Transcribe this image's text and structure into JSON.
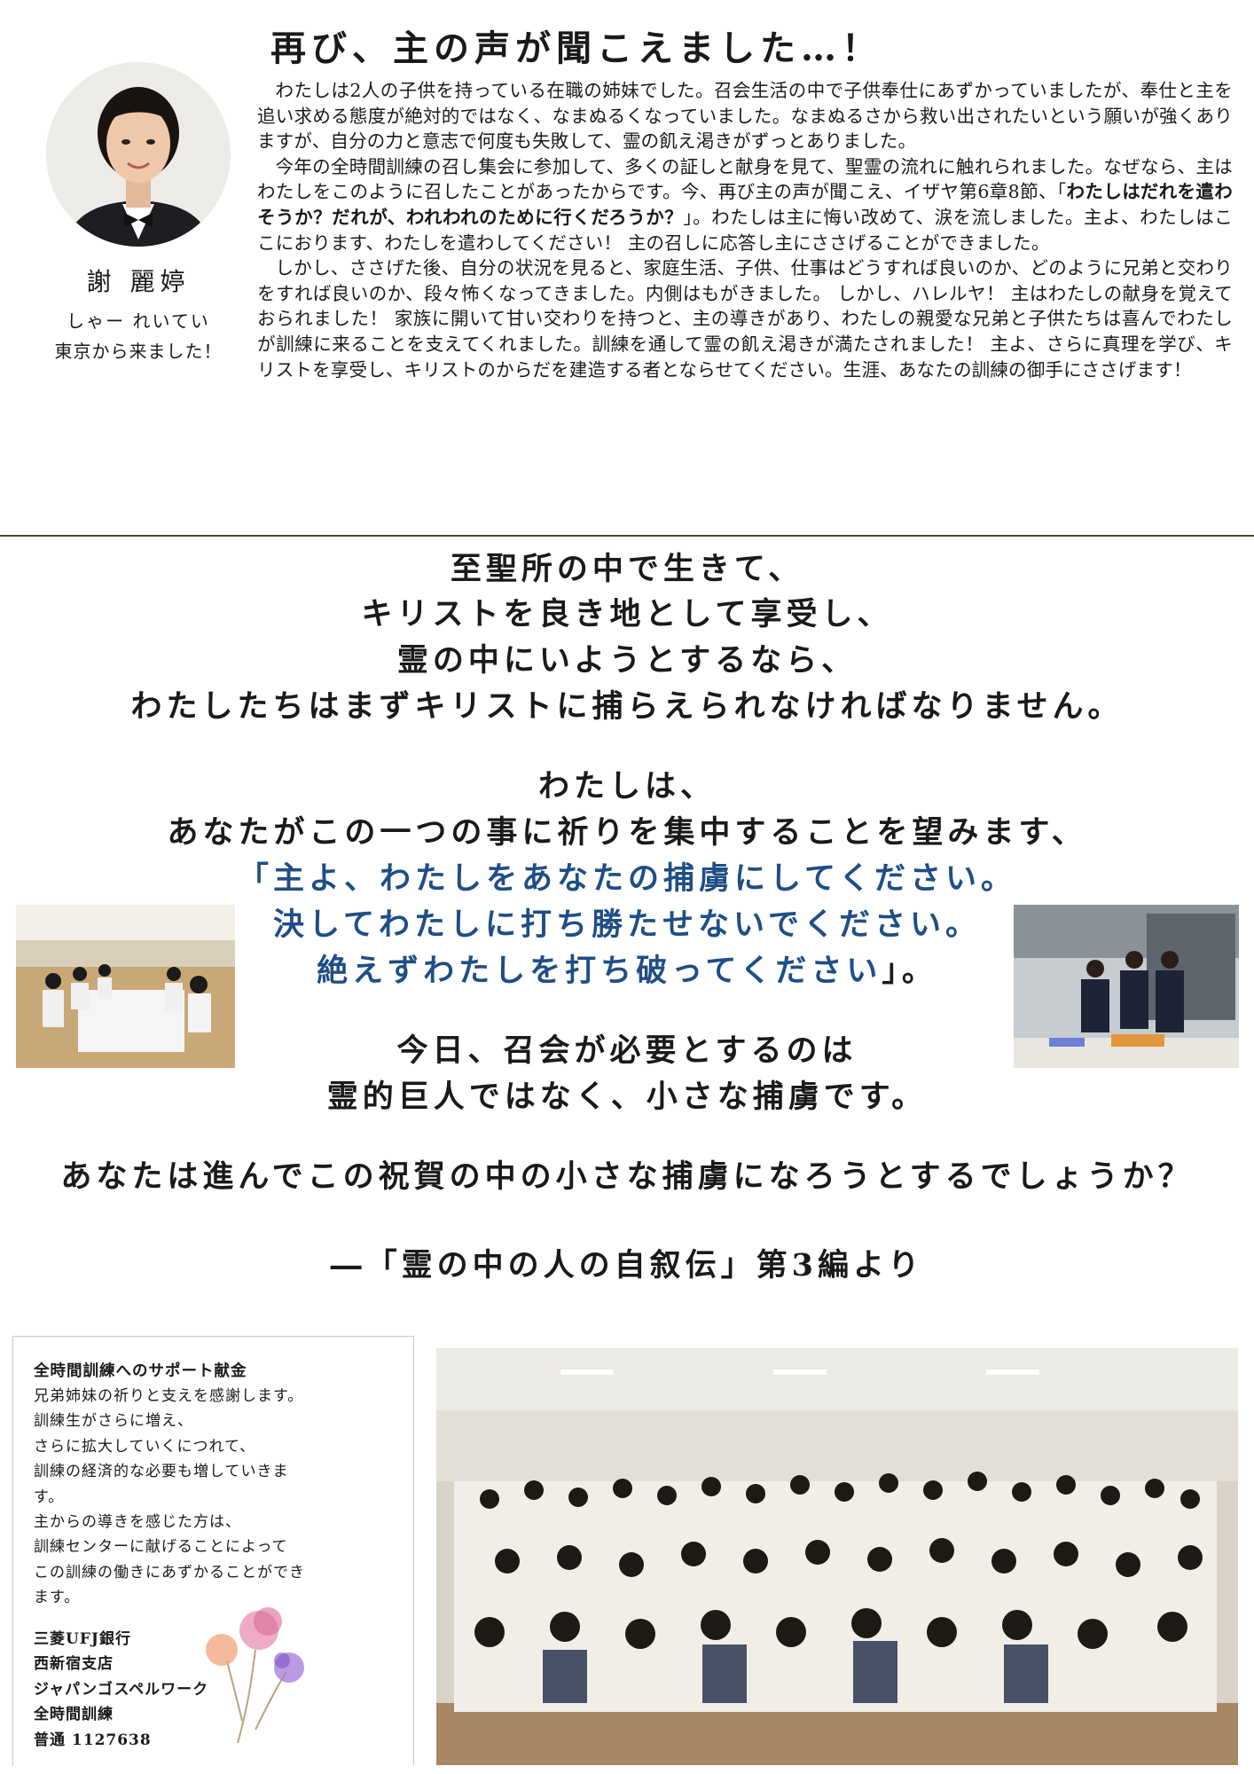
{
  "testimony": {
    "title": "再び、主の声が聞こえました…！",
    "name": "謝 麗婷",
    "reading": "しゃー れいてい",
    "origin": "東京から来ました！",
    "p1": "わたしは2人の子供を持っている在職の姉妹でした。召会生活の中で子供奉仕にあずかっていましたが、奉仕と主を追い求める態度が絶対的ではなく、なまぬるくなっていました。なまぬるさから救い出されたいという願いが強くありますが、自分の力と意志で何度も失敗して、霊の飢え渇きがずっとありました。",
    "p2_a": "今年の全時間訓練の召し集会に参加して、多くの証しと献身を見て、聖霊の流れに触れられました。なぜなら、主はわたしをこのように召したことがあったからです。今、再び主の声が聞こえ、イザヤ第6章8節、「",
    "p2_bold": "わたしはだれを遣わそうか？だれが、われわれのために行くだろうか？",
    "p2_b": "」。わたしは主に悔い改めて、涙を流しました。主よ、わたしはここにおります、わたしを遣わしてください！ 主の召しに応答し主にささげることができました。",
    "p3": "しかし、ささげた後、自分の状況を見ると、家庭生活、子供、仕事はどうすれば良いのか、どのように兄弟と交わりをすれば良いのか、段々怖くなってきました。内側はもがきました。 しかし、ハレルヤ！ 主はわたしの献身を覚えておられました！ 家族に開いて甘い交わりを持つと、主の導きがあり、わたしの親愛な兄弟と子供たちは喜んでわたしが訓練に来ることを支えてくれました。訓練を通して霊の飢え渇きが満たされました！ 主よ、さらに真理を学び、キリストを享受し、キリストのからだを建造する者とならせてください。生涯、あなたの訓練の御手にささげます！"
  },
  "poem": {
    "l1": "至聖所の中で生きて、",
    "l2": "キリストを良き地として享受し、",
    "l3": "霊の中にいようとするなら、",
    "l4": "わたしたちはまずキリストに捕らえられなければなりません。",
    "l5": "わたしは、",
    "l6": "あなたがこの一つの事に祈りを集中することを望みます、",
    "l7": "「主よ、わたしをあなたの捕虜にしてください。",
    "l8": "決してわたしに打ち勝たせないでください。",
    "l9_blue": "絶えずわたしを打ち破ってください",
    "l9_end": "」。",
    "l10": "今日、召会が必要とするのは",
    "l11": "霊的巨人ではなく、小さな捕虜です。",
    "l12": "あなたは進んでこの祝賀の中の小さな捕虜になろうとするでしょうか？",
    "source": "―「霊の中の人の自叙伝」第3編より"
  },
  "support": {
    "heading": "全時間訓練へのサポート献金",
    "lines": [
      "兄弟姉妹の祈りと支えを感謝します。",
      "訓練生がさらに増え、",
      "さらに拡大していくにつれて、",
      "訓練の経済的な必要も増していきま",
      "す。",
      "主からの導きを感じた方は、",
      "訓練センターに献げることによって",
      "この訓練の働きにあずかることができ",
      "ます。"
    ],
    "bank": [
      "三菱UFJ銀行",
      "西新宿支店",
      "ジャパンゴスペルワーク",
      "全時間訓練",
      "普通 1127638"
    ]
  },
  "colors": {
    "accent_blue": "#1f4e86",
    "divider": "#3f4b32"
  }
}
